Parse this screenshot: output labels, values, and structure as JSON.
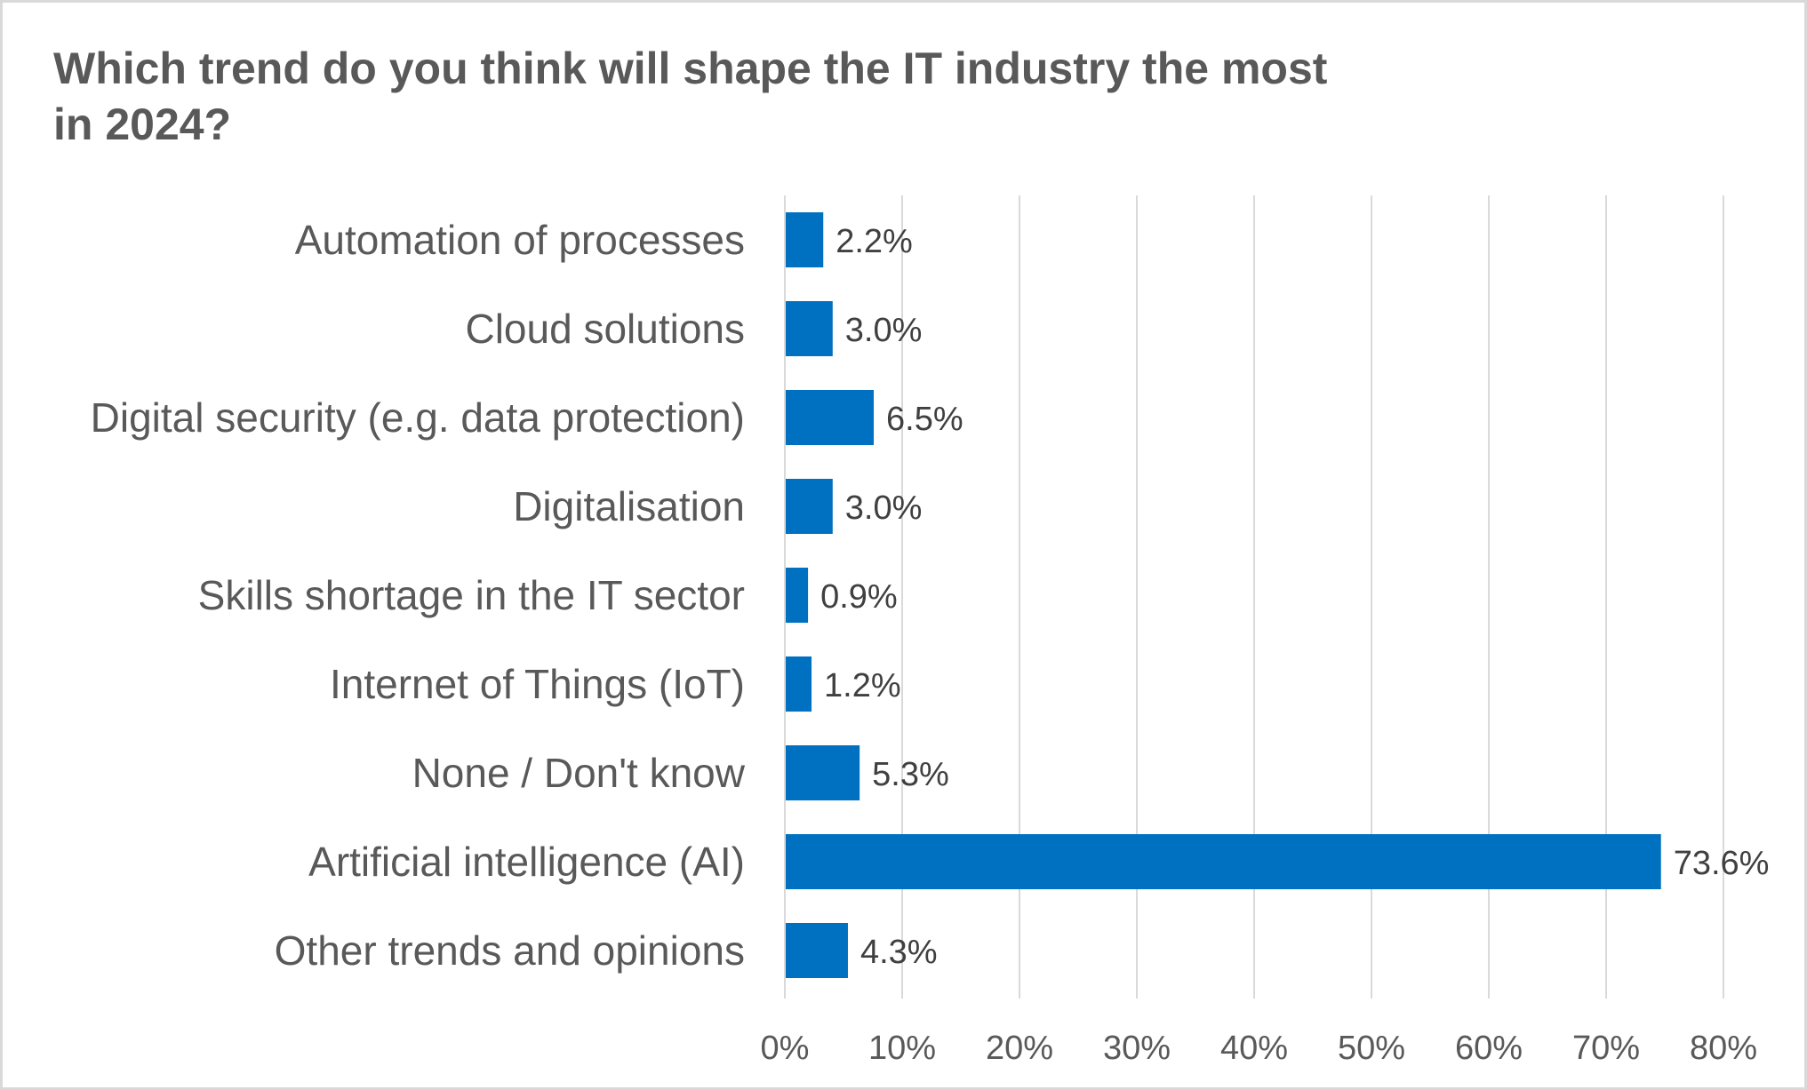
{
  "chart_data": {
    "type": "bar",
    "orientation": "horizontal",
    "title": "Which trend do you think will shape the IT industry the most in 2024?",
    "title_lines": [
      "Which trend do you think will shape the IT industry the most",
      "in 2024?"
    ],
    "categories": [
      "Automation of processes",
      "Cloud solutions",
      "Digital security (e.g. data protection)",
      "Digitalisation",
      "Skills shortage in the IT sector",
      "Internet of Things (IoT)",
      "None / Don't know",
      "Artificial intelligence (AI)",
      "Other trends and opinions"
    ],
    "values": [
      2.2,
      3.0,
      6.5,
      3.0,
      0.9,
      1.2,
      5.3,
      73.6,
      4.3
    ],
    "value_labels": [
      "2.2%",
      "3.0%",
      "6.5%",
      "3.0%",
      "0.9%",
      "1.2%",
      "5.3%",
      "73.6%",
      "4.3%"
    ],
    "xlabel": "",
    "ylabel": "",
    "xlim": [
      0,
      80
    ],
    "xticks": [
      0,
      10,
      20,
      30,
      40,
      50,
      60,
      70,
      80
    ],
    "xtick_labels": [
      "0%",
      "10%",
      "20%",
      "30%",
      "40%",
      "50%",
      "60%",
      "70%",
      "80%"
    ],
    "grid": "vertical",
    "legend": "none",
    "colors": {
      "bar": "#0070c0",
      "grid": "#d9d9d9",
      "title": "#595959",
      "text": "#595959",
      "data_label": "#404040",
      "border": "#d9d9d9"
    }
  }
}
